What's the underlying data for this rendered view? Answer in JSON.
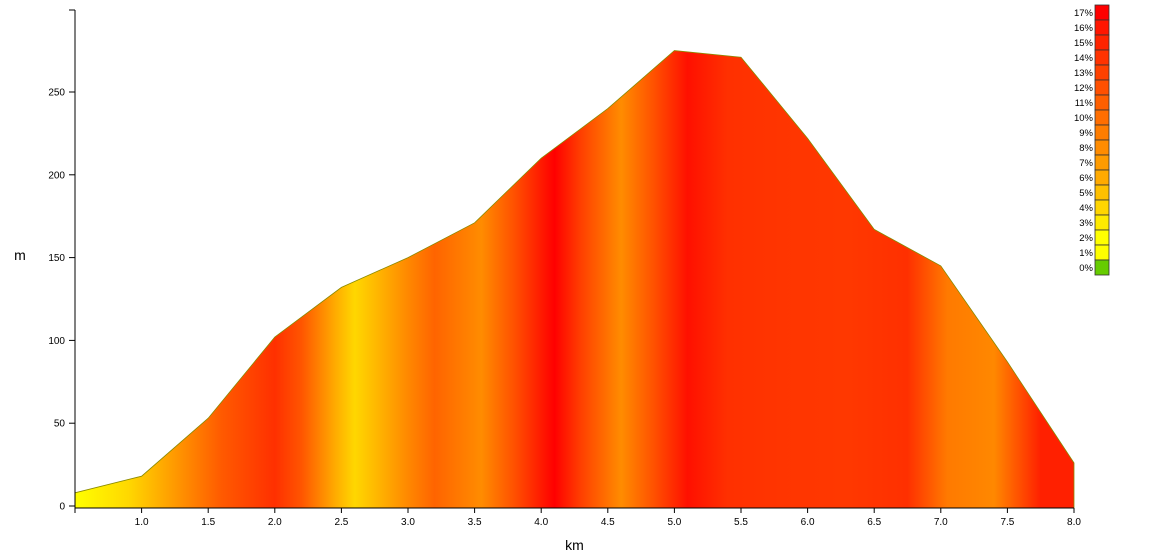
{
  "chart_data": {
    "type": "area",
    "title": "",
    "xlabel": "km",
    "ylabel": "m",
    "xlim": [
      0.5,
      8.0
    ],
    "ylim": [
      0,
      300
    ],
    "x_ticks": [
      "1.0",
      "1.5",
      "2.0",
      "2.5",
      "3.0",
      "3.5",
      "4.0",
      "4.5",
      "5.0",
      "5.5",
      "6.0",
      "6.5",
      "7.0",
      "7.5",
      "8.0"
    ],
    "y_ticks": [
      "0",
      "50",
      "100",
      "150",
      "200",
      "250"
    ],
    "series": [
      {
        "x": [
          0.5,
          1.0,
          1.5,
          2.0,
          2.5,
          3.0,
          3.5,
          4.0,
          4.5,
          5.0,
          5.5,
          6.0,
          6.5,
          7.0,
          7.5,
          8.0
        ],
        "y": [
          8,
          18,
          53,
          102,
          132,
          150,
          171,
          210,
          240,
          275,
          271,
          222,
          167,
          145,
          87,
          26
        ]
      }
    ],
    "gradient_legend": {
      "position": "top-right",
      "items": [
        {
          "label": "17%",
          "color": "#ff0000"
        },
        {
          "label": "16%",
          "color": "#ff1600"
        },
        {
          "label": "15%",
          "color": "#ff2400"
        },
        {
          "label": "14%",
          "color": "#ff3300"
        },
        {
          "label": "13%",
          "color": "#ff4100"
        },
        {
          "label": "12%",
          "color": "#ff5000"
        },
        {
          "label": "11%",
          "color": "#ff5f00"
        },
        {
          "label": "10%",
          "color": "#ff6e00"
        },
        {
          "label": "9%",
          "color": "#ff7d00"
        },
        {
          "label": "8%",
          "color": "#ff8c00"
        },
        {
          "label": "7%",
          "color": "#ff9b00"
        },
        {
          "label": "6%",
          "color": "#ffaa00"
        },
        {
          "label": "5%",
          "color": "#ffc000"
        },
        {
          "label": "4%",
          "color": "#ffd500"
        },
        {
          "label": "3%",
          "color": "#ffea00"
        },
        {
          "label": "2%",
          "color": "#ffff00"
        },
        {
          "label": "1%",
          "color": "#ffff00"
        },
        {
          "label": "0%",
          "color": "#66cc00"
        }
      ]
    },
    "outline_color": "#8a8a00"
  }
}
